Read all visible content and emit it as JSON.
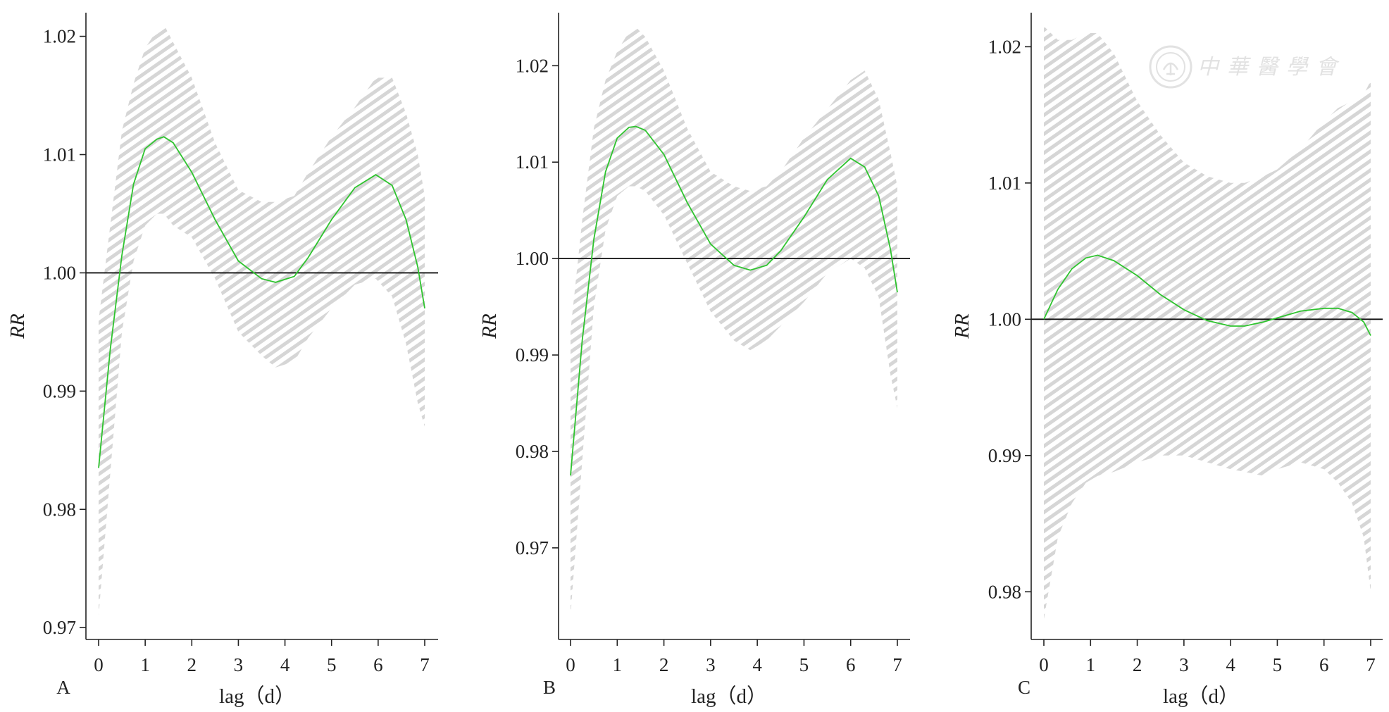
{
  "watermark": {
    "text": "中華醫學會",
    "color": "#e4e4e4"
  },
  "colors": {
    "curve": "#2fc42f",
    "band": "#d6d6d6",
    "axis": "#222222"
  },
  "chart_data": [
    {
      "type": "line",
      "panel_label": "A",
      "xlabel": "lag（d）",
      "ylabel": "RR",
      "xlim": [
        0,
        7
      ],
      "ylim": [
        0.969,
        1.022
      ],
      "xticks": [
        0,
        1,
        2,
        3,
        4,
        5,
        6,
        7
      ],
      "yticks": [
        0.97,
        0.98,
        0.99,
        1.0,
        1.01,
        1.02
      ],
      "ytick_labels": [
        "0.97",
        "0.98",
        "0.99",
        "1.00",
        "1.01",
        "1.02"
      ],
      "reference_y": 1.0,
      "confidence_band": "hatched",
      "series": [
        {
          "x": [
            0,
            0.25,
            0.5,
            0.75,
            1.0,
            1.25,
            1.4,
            1.6,
            2.0,
            2.5,
            3.0,
            3.5,
            3.8,
            4.2,
            4.5,
            5.0,
            5.5,
            5.95,
            6.3,
            6.6,
            6.85,
            7.0
          ],
          "y": [
            0.9835,
            0.9935,
            1.0015,
            1.0075,
            1.0105,
            1.0113,
            1.0115,
            1.011,
            1.0085,
            1.0045,
            1.001,
            0.9995,
            0.9992,
            0.9997,
            1.0013,
            1.0045,
            1.0072,
            1.0083,
            1.0074,
            1.0045,
            1.0005,
            0.997
          ],
          "lower": [
            0.971,
            0.983,
            0.995,
            1.001,
            1.004,
            1.005,
            1.005,
            1.004,
            1.003,
            0.9995,
            0.995,
            0.993,
            0.992,
            0.9925,
            0.9945,
            0.997,
            0.999,
            0.9995,
            0.998,
            0.994,
            0.989,
            0.987
          ],
          "upper": [
            0.996,
            1.004,
            1.012,
            1.016,
            1.019,
            1.0205,
            1.021,
            1.0195,
            1.0165,
            1.011,
            1.007,
            1.006,
            1.006,
            1.0065,
            1.0085,
            1.0115,
            1.014,
            1.0165,
            1.0165,
            1.0135,
            1.01,
            1.0065
          ]
        }
      ]
    },
    {
      "type": "line",
      "panel_label": "B",
      "xlabel": "lag（d）",
      "ylabel": "RR",
      "xlim": [
        0,
        7
      ],
      "ylim": [
        0.9605,
        1.0255
      ],
      "xticks": [
        0,
        1,
        2,
        3,
        4,
        5,
        6,
        7
      ],
      "yticks": [
        0.97,
        0.98,
        0.99,
        1.0,
        1.01,
        1.02
      ],
      "ytick_labels": [
        "0.97",
        "0.98",
        "0.99",
        "1.00",
        "1.01",
        "1.02"
      ],
      "reference_y": 1.0,
      "confidence_band": "hatched",
      "series": [
        {
          "x": [
            0,
            0.25,
            0.5,
            0.75,
            1.0,
            1.25,
            1.4,
            1.6,
            2.0,
            2.5,
            3.0,
            3.5,
            3.85,
            4.2,
            4.5,
            5.0,
            5.5,
            6.0,
            6.3,
            6.6,
            6.85,
            7.0
          ],
          "y": [
            0.9775,
            0.9915,
            1.002,
            1.009,
            1.0125,
            1.0136,
            1.0137,
            1.0133,
            1.0108,
            1.0058,
            1.0015,
            0.9993,
            0.9988,
            0.9993,
            1.0008,
            1.0043,
            1.0082,
            1.0104,
            1.0095,
            1.0065,
            1.001,
            0.9965
          ],
          "lower": [
            0.963,
            0.979,
            0.995,
            1.003,
            1.0065,
            1.0075,
            1.0075,
            1.007,
            1.0045,
            0.9995,
            0.9945,
            0.9915,
            0.9905,
            0.9915,
            0.993,
            0.9955,
            0.9985,
            1.0,
            0.999,
            0.996,
            0.988,
            0.9845
          ],
          "upper": [
            0.9925,
            1.004,
            1.0135,
            1.0185,
            1.0215,
            1.0235,
            1.024,
            1.023,
            1.0195,
            1.0135,
            1.009,
            1.0075,
            1.007,
            1.0075,
            1.009,
            1.0125,
            1.0155,
            1.0185,
            1.0195,
            1.0165,
            1.011,
            1.0075
          ]
        }
      ]
    },
    {
      "type": "line",
      "panel_label": "C",
      "xlabel": "lag（d）",
      "ylabel": "RR",
      "xlim": [
        0,
        7
      ],
      "ylim": [
        0.9765,
        1.0225
      ],
      "xticks": [
        0,
        1,
        2,
        3,
        4,
        5,
        6,
        7
      ],
      "yticks": [
        0.98,
        0.99,
        1.0,
        1.01,
        1.02
      ],
      "ytick_labels": [
        "0.98",
        "0.99",
        "1.00",
        "1.01",
        "1.02"
      ],
      "reference_y": 1.0,
      "confidence_band": "hatched",
      "series": [
        {
          "x": [
            0,
            0.3,
            0.6,
            0.9,
            1.15,
            1.5,
            2.0,
            2.5,
            3.0,
            3.5,
            4.0,
            4.3,
            4.7,
            5.0,
            5.5,
            6.0,
            6.3,
            6.6,
            6.85,
            7.0
          ],
          "y": [
            1.0,
            1.0022,
            1.0037,
            1.0045,
            1.0047,
            1.0043,
            1.0032,
            1.0018,
            1.0007,
            0.9999,
            0.9995,
            0.9995,
            0.9998,
            1.0001,
            1.0006,
            1.0008,
            1.0008,
            1.0005,
            0.9998,
            0.9988
          ],
          "lower": [
            0.978,
            0.984,
            0.9865,
            0.988,
            0.9885,
            0.9888,
            0.9895,
            0.99,
            0.99,
            0.9895,
            0.989,
            0.9888,
            0.9885,
            0.989,
            0.9895,
            0.989,
            0.988,
            0.9865,
            0.984,
            0.98
          ],
          "upper": [
            1.0215,
            1.0205,
            1.0205,
            1.021,
            1.021,
            1.0195,
            1.016,
            1.0135,
            1.0115,
            1.0105,
            1.01,
            1.01,
            1.0105,
            1.011,
            1.0125,
            1.0145,
            1.0155,
            1.016,
            1.0165,
            1.0175
          ]
        }
      ]
    }
  ]
}
